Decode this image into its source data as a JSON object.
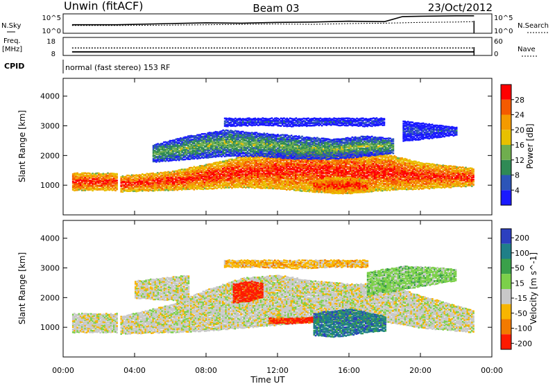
{
  "header": {
    "station": "Unwin (fitACF)",
    "beam": "Beam 03",
    "date": "23/Oct/2012"
  },
  "colors": {
    "power_scale": [
      "#1a1aff",
      "#2c55b8",
      "#2f8a55",
      "#6fae4e",
      "#e8c000",
      "#f49a00",
      "#f45a00",
      "#ff0000"
    ],
    "velocity_scale": [
      "#2c3fbf",
      "#1f7f88",
      "#3aa04a",
      "#7cd04a",
      "#c8c8c8",
      "#f7b500",
      "#f27a00",
      "#ff1a00"
    ],
    "ground_scatter": "#c8c8c8"
  },
  "chart_data": [
    {
      "type": "line",
      "title": "N.Sky / N.Search",
      "left_label": "N.Sky",
      "right_label": "N.Search",
      "left_ticks": [
        "10^5",
        "10^0"
      ],
      "right_ticks": [
        "10^5",
        "10^0"
      ],
      "ylim": [
        0,
        5
      ],
      "series": [
        {
          "name": "N.Sky",
          "style": "solid",
          "x": [
            0.5,
            3,
            6,
            8,
            10,
            12,
            14,
            16,
            18,
            19,
            20,
            22,
            23
          ],
          "values": [
            2.2,
            2.2,
            2.5,
            2.7,
            2.6,
            2.8,
            2.9,
            3.1,
            3.0,
            4.3,
            4.4,
            4.5,
            4.5
          ]
        },
        {
          "name": "N.Search",
          "style": "dotted",
          "x": [
            0.5,
            3,
            6,
            8,
            10,
            12,
            14,
            16,
            18,
            19,
            20,
            22,
            23
          ],
          "values": [
            2.0,
            2.0,
            2.1,
            2.2,
            2.3,
            2.4,
            2.3,
            2.5,
            2.6,
            2.7,
            2.8,
            2.9,
            3.0
          ]
        }
      ]
    },
    {
      "type": "line",
      "title": "Freq. / Nave",
      "left_label": "Freq.\n[MHz]",
      "right_label": "Nave",
      "left_ticks": [
        "18",
        "8"
      ],
      "right_ticks": [
        "60",
        "0"
      ],
      "series": [
        {
          "name": "Nave",
          "style": "dotted",
          "x": [
            0.5,
            23
          ],
          "values": [
            25,
            25
          ]
        },
        {
          "name": "Freq.",
          "style": "solid",
          "x": [
            0.5,
            23
          ],
          "values": [
            10,
            10
          ]
        }
      ]
    },
    {
      "type": "table",
      "label": "CPID",
      "value": "normal (fast stereo) 153 RF"
    },
    {
      "type": "heatmap",
      "ylabel": "Slant Range [km]",
      "yticks": [
        1000,
        2000,
        3000,
        4000
      ],
      "ylim": [
        0,
        4600
      ],
      "xlim": [
        0,
        24
      ],
      "colorbar": {
        "label": "Power [dB]",
        "ticks": [
          4,
          8,
          12,
          16,
          20,
          24,
          28
        ],
        "range": [
          0,
          32
        ]
      },
      "bands": [
        {
          "x": [
            0.5,
            3.0
          ],
          "lower": [
            850,
            850
          ],
          "upper": [
            1450,
            1450
          ],
          "center_level": 7
        },
        {
          "x": [
            3.2,
            6,
            8,
            10,
            12,
            14,
            16,
            18,
            20,
            23
          ],
          "lower": [
            800,
            850,
            900,
            950,
            900,
            800,
            750,
            850,
            900,
            1000
          ],
          "upper": [
            1350,
            1500,
            1750,
            2000,
            2200,
            2300,
            2200,
            2100,
            1800,
            1600
          ],
          "center_level": 7
        },
        {
          "x": [
            5,
            7,
            9,
            11,
            13,
            15,
            17,
            18.5
          ],
          "lower": [
            1800,
            1900,
            2000,
            2000,
            1900,
            1900,
            2000,
            2100
          ],
          "upper": [
            2400,
            2700,
            2900,
            2800,
            2700,
            2600,
            2700,
            2600
          ],
          "center_level": 3
        },
        {
          "x": [
            9,
            11,
            13,
            15,
            17,
            18
          ],
          "lower": [
            3000,
            3050,
            3000,
            3050,
            3000,
            3050
          ],
          "upper": [
            3300,
            3300,
            3300,
            3300,
            3300,
            3300
          ],
          "center_level": 1
        },
        {
          "x": [
            14,
            15,
            16,
            17
          ],
          "lower": [
            800,
            750,
            750,
            800
          ],
          "upper": [
            1200,
            1300,
            1300,
            1200
          ],
          "center_level": 7
        },
        {
          "x": [
            19,
            20.5,
            22
          ],
          "lower": [
            2500,
            2600,
            2700
          ],
          "upper": [
            3200,
            3100,
            3000
          ],
          "center_level": 1
        }
      ]
    },
    {
      "type": "heatmap",
      "ylabel": "Slant Range [km]",
      "xlabel": "Time UT",
      "xticks": [
        "00:00",
        "04:00",
        "08:00",
        "12:00",
        "16:00",
        "20:00",
        "00:00"
      ],
      "yticks": [
        1000,
        2000,
        3000,
        4000
      ],
      "ylim": [
        0,
        4600
      ],
      "xlim": [
        0,
        24
      ],
      "colorbar": {
        "label": "Velocity [m s^-1]",
        "ticks": [
          200,
          100,
          50,
          15,
          -15,
          -50,
          -100,
          -200
        ]
      },
      "bands": [
        {
          "x": [
            0.5,
            3.0
          ],
          "lower": [
            850,
            850
          ],
          "upper": [
            1500,
            1500
          ],
          "center_level": 4
        },
        {
          "x": [
            3.2,
            6,
            8,
            10,
            12,
            14,
            16,
            18,
            20,
            23
          ],
          "lower": [
            800,
            850,
            900,
            1000,
            1100,
            1200,
            1200,
            1200,
            1000,
            850
          ],
          "upper": [
            1400,
            1800,
            2300,
            2700,
            2800,
            2600,
            2500,
            2500,
            2100,
            1600
          ],
          "center_level": 4
        },
        {
          "x": [
            4,
            5.5,
            7
          ],
          "lower": [
            2000,
            1950,
            1900
          ],
          "upper": [
            2600,
            2700,
            2800
          ],
          "center_level": 4
        },
        {
          "x": [
            9.5,
            10.5,
            11.2
          ],
          "lower": [
            1850,
            1900,
            2050
          ],
          "upper": [
            2500,
            2600,
            2500
          ],
          "center_level": 7
        },
        {
          "x": [
            11.5,
            13,
            14.5
          ],
          "lower": [
            1150,
            1150,
            1200
          ],
          "upper": [
            1350,
            1350,
            1400
          ],
          "center_level": 7
        },
        {
          "x": [
            14,
            15,
            16,
            17,
            18
          ],
          "lower": [
            750,
            700,
            750,
            850,
            900
          ],
          "upper": [
            1500,
            1600,
            1650,
            1550,
            1400
          ],
          "center_level": 1
        },
        {
          "x": [
            17,
            19,
            21,
            22
          ],
          "lower": [
            2100,
            2300,
            2500,
            2600
          ],
          "upper": [
            2900,
            3100,
            3050,
            3000
          ],
          "center_level": 3
        },
        {
          "x": [
            9,
            11,
            13,
            15,
            17
          ],
          "lower": [
            3050,
            3050,
            3000,
            3050,
            3050
          ],
          "upper": [
            3300,
            3300,
            3300,
            3300,
            3300
          ],
          "center_level": 5
        }
      ]
    }
  ]
}
